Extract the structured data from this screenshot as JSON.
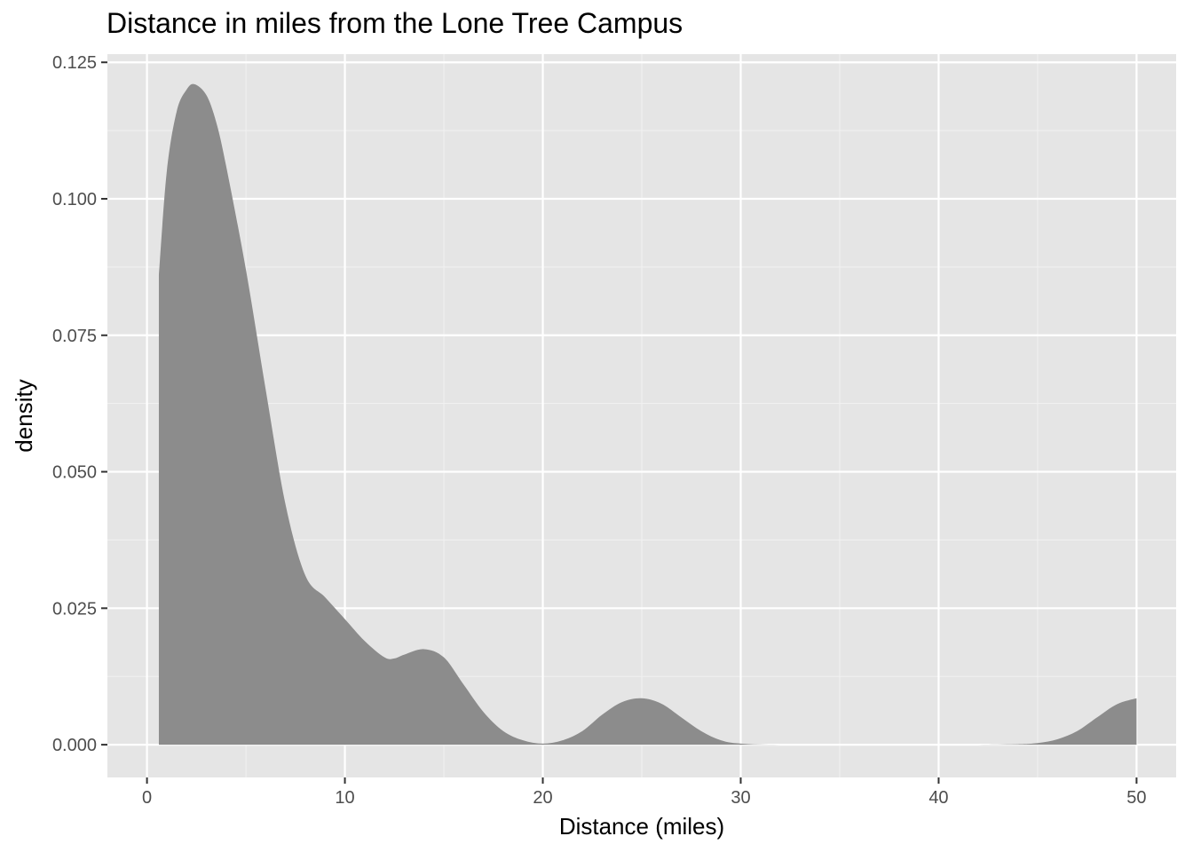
{
  "chart_data": {
    "type": "area",
    "title": "Distance in miles from the Lone Tree Campus",
    "xlabel": "Distance (miles)",
    "ylabel": "density",
    "xlim": [
      -2,
      52
    ],
    "ylim": [
      -0.006,
      0.1265
    ],
    "x_ticks": [
      0,
      10,
      20,
      30,
      40,
      50
    ],
    "x_tick_labels": [
      "0",
      "10",
      "20",
      "30",
      "40",
      "50"
    ],
    "x_minor_ticks": [
      5,
      15,
      25,
      35,
      45
    ],
    "y_ticks": [
      0,
      0.025,
      0.05,
      0.075,
      0.1,
      0.125
    ],
    "y_tick_labels": [
      "0.000",
      "0.025",
      "0.050",
      "0.075",
      "0.100",
      "0.125"
    ],
    "y_minor_ticks": [
      0.0125,
      0.0375,
      0.0625,
      0.0875,
      0.1125
    ],
    "grid": true,
    "panel_background": "#e5e5e5",
    "fill_color": "#888888",
    "series": [
      {
        "x": [
          0.6,
          1.0,
          1.5,
          2.0,
          2.4,
          3.0,
          3.5,
          4.0,
          5.0,
          6.0,
          7.0,
          8.0,
          9.0,
          10.0,
          11.0,
          12.0,
          12.5,
          13.0,
          14.0,
          15.0,
          16.0,
          17.0,
          18.0,
          19.0,
          20.0,
          21.0,
          22.0,
          23.0,
          24.0,
          25.0,
          26.0,
          27.0,
          28.0,
          29.0,
          30.0,
          32.0,
          35.0,
          40.0,
          42.0,
          44.0,
          45.0,
          46.0,
          47.0,
          48.0,
          49.0,
          50.0
        ],
        "y": [
          0.086,
          0.105,
          0.116,
          0.12,
          0.121,
          0.119,
          0.114,
          0.106,
          0.087,
          0.065,
          0.044,
          0.031,
          0.027,
          0.023,
          0.019,
          0.016,
          0.0158,
          0.0165,
          0.0175,
          0.016,
          0.011,
          0.006,
          0.0025,
          0.0008,
          0.0002,
          0.0008,
          0.0025,
          0.0055,
          0.0078,
          0.0085,
          0.0075,
          0.005,
          0.0025,
          0.0008,
          0.0002,
          0.0,
          0.0,
          0.0,
          0.0,
          0.0001,
          0.0003,
          0.001,
          0.0025,
          0.005,
          0.0074,
          0.0085
        ]
      }
    ]
  }
}
